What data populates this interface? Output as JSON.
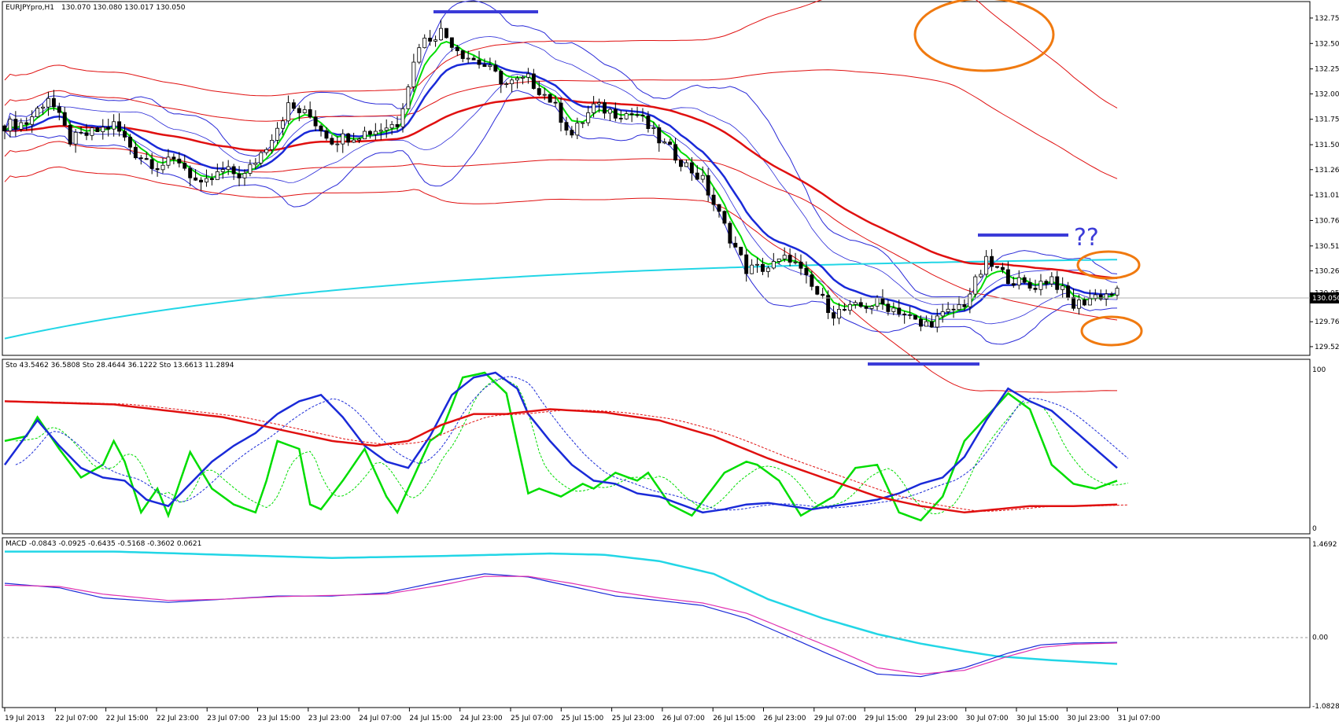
{
  "app": {
    "title": "EURJPYpro,H1",
    "ohlc": "130.070 130.080 130.017 130.050",
    "current_price": "130.050"
  },
  "colors": {
    "background": "#ffffff",
    "bull_candle": "#ffffff",
    "bear_candle": "#000000",
    "ema_fast": "#00dd00",
    "ema_mid": "#1a2ad8",
    "ema_slow": "#e01010",
    "ema_200": "#22d6e6",
    "bollinger_blue": "#2a2ad8",
    "bollinger_red": "#e01010",
    "annotation_orange": "#f07a10",
    "annotation_blue": "#3b3bd8",
    "macd_main": "#22d6e6",
    "macd_signal": "#e030b0",
    "stoch_fast": "#00dd00",
    "stoch_mid": "#1a2ad8",
    "stoch_slow": "#e01010"
  },
  "annotations": {
    "question": "??"
  },
  "chart_data": [
    {
      "type": "candlestick",
      "title": "EURJPYpro,H1",
      "subtitle": "130.070 130.080 130.017 130.050",
      "ylim": [
        129.45,
        132.85
      ],
      "y_ticks": [
        "132.750",
        "132.500",
        "132.250",
        "132.005",
        "131.755",
        "131.505",
        "131.260",
        "131.010",
        "130.760",
        "130.510",
        "130.265",
        "130.050",
        "129.765",
        "129.520"
      ],
      "x_ticks": [
        "19 Jul 2013",
        "22 Jul 07:00",
        "22 Jul 15:00",
        "22 Jul 23:00",
        "23 Jul 07:00",
        "23 Jul 15:00",
        "23 Jul 23:00",
        "24 Jul 07:00",
        "24 Jul 15:00",
        "24 Jul 23:00",
        "25 Jul 07:00",
        "25 Jul 15:00",
        "25 Jul 23:00",
        "26 Jul 07:00",
        "26 Jul 15:00",
        "26 Jul 23:00",
        "29 Jul 07:00",
        "29 Jul 15:00",
        "29 Jul 23:00",
        "30 Jul 07:00",
        "30 Jul 15:00",
        "30 Jul 23:00",
        "31 Jul 07:00"
      ],
      "close_key": [
        [
          0,
          131.7
        ],
        [
          4,
          131.72
        ],
        [
          8,
          131.98
        ],
        [
          12,
          131.55
        ],
        [
          16,
          131.62
        ],
        [
          20,
          131.7
        ],
        [
          24,
          131.42
        ],
        [
          28,
          131.3
        ],
        [
          32,
          131.35
        ],
        [
          36,
          131.08
        ],
        [
          40,
          131.25
        ],
        [
          44,
          131.2
        ],
        [
          48,
          131.5
        ],
        [
          52,
          131.88
        ],
        [
          56,
          131.78
        ],
        [
          60,
          131.55
        ],
        [
          64,
          131.6
        ],
        [
          68,
          131.65
        ],
        [
          72,
          131.72
        ],
        [
          76,
          132.5
        ],
        [
          80,
          132.62
        ],
        [
          84,
          132.4
        ],
        [
          88,
          132.28
        ],
        [
          92,
          132.1
        ],
        [
          96,
          132.15
        ],
        [
          100,
          131.95
        ],
        [
          104,
          131.6
        ],
        [
          108,
          131.88
        ],
        [
          112,
          131.82
        ],
        [
          116,
          131.8
        ],
        [
          120,
          131.55
        ],
        [
          124,
          131.35
        ],
        [
          128,
          131.15
        ],
        [
          132,
          130.7
        ],
        [
          136,
          130.28
        ],
        [
          140,
          130.3
        ],
        [
          144,
          130.4
        ],
        [
          148,
          130.1
        ],
        [
          152,
          129.85
        ],
        [
          156,
          129.9
        ],
        [
          160,
          129.95
        ],
        [
          164,
          129.88
        ],
        [
          168,
          129.72
        ],
        [
          172,
          129.82
        ],
        [
          176,
          129.95
        ],
        [
          180,
          130.35
        ],
        [
          184,
          130.2
        ],
        [
          188,
          130.1
        ],
        [
          192,
          130.2
        ],
        [
          196,
          129.92
        ],
        [
          200,
          130.02
        ],
        [
          204,
          130.05
        ]
      ],
      "series": [
        {
          "name": "Sto 43.5462 36.5808"
        },
        {
          "name": "Sto 28.4644 36.1222"
        },
        {
          "name": "Sto 13.6613 11.2894"
        }
      ]
    },
    {
      "type": "line",
      "title": "Sto 43.5462 36.5808   Sto 28.4644 36.1222   Sto 13.6613 11.2894",
      "ylim": [
        0,
        100
      ],
      "y_ticks": [
        "100",
        "0"
      ],
      "series": [
        {
          "key": [
            [
              0,
              55
            ],
            [
              4,
              58
            ],
            [
              6,
              70
            ],
            [
              10,
              50
            ],
            [
              14,
              32
            ],
            [
              18,
              40
            ],
            [
              20,
              55
            ],
            [
              22,
              42
            ],
            [
              25,
              10
            ],
            [
              28,
              25
            ],
            [
              30,
              8
            ],
            [
              34,
              48
            ],
            [
              38,
              25
            ],
            [
              42,
              15
            ],
            [
              46,
              10
            ],
            [
              48,
              30
            ],
            [
              50,
              55
            ],
            [
              54,
              50
            ],
            [
              56,
              15
            ],
            [
              58,
              12
            ],
            [
              62,
              30
            ],
            [
              66,
              50
            ],
            [
              70,
              20
            ],
            [
              72,
              10
            ],
            [
              78,
              55
            ],
            [
              80,
              60
            ],
            [
              84,
              95
            ],
            [
              88,
              98
            ],
            [
              92,
              85
            ],
            [
              96,
              22
            ],
            [
              98,
              25
            ],
            [
              102,
              20
            ],
            [
              106,
              28
            ],
            [
              108,
              25
            ],
            [
              112,
              35
            ],
            [
              116,
              30
            ],
            [
              118,
              35
            ],
            [
              122,
              15
            ],
            [
              126,
              8
            ],
            [
              132,
              35
            ],
            [
              136,
              42
            ],
            [
              138,
              40
            ],
            [
              142,
              30
            ],
            [
              146,
              8
            ],
            [
              152,
              20
            ],
            [
              156,
              38
            ],
            [
              160,
              40
            ],
            [
              164,
              10
            ],
            [
              168,
              5
            ],
            [
              172,
              20
            ],
            [
              176,
              55
            ],
            [
              180,
              70
            ],
            [
              184,
              85
            ],
            [
              188,
              75
            ],
            [
              192,
              40
            ],
            [
              196,
              28
            ],
            [
              200,
              25
            ],
            [
              204,
              30
            ]
          ]
        },
        {
          "key": [
            [
              0,
              40
            ],
            [
              6,
              68
            ],
            [
              10,
              52
            ],
            [
              14,
              38
            ],
            [
              18,
              32
            ],
            [
              22,
              30
            ],
            [
              26,
              18
            ],
            [
              30,
              14
            ],
            [
              34,
              28
            ],
            [
              38,
              42
            ],
            [
              42,
              52
            ],
            [
              46,
              60
            ],
            [
              50,
              72
            ],
            [
              54,
              80
            ],
            [
              58,
              84
            ],
            [
              62,
              70
            ],
            [
              66,
              52
            ],
            [
              70,
              42
            ],
            [
              74,
              38
            ],
            [
              78,
              58
            ],
            [
              82,
              84
            ],
            [
              86,
              95
            ],
            [
              90,
              98
            ],
            [
              94,
              88
            ],
            [
              96,
              72
            ],
            [
              100,
              55
            ],
            [
              104,
              40
            ],
            [
              108,
              30
            ],
            [
              112,
              28
            ],
            [
              116,
              22
            ],
            [
              120,
              20
            ],
            [
              124,
              15
            ],
            [
              128,
              10
            ],
            [
              132,
              12
            ],
            [
              136,
              15
            ],
            [
              140,
              16
            ],
            [
              144,
              14
            ],
            [
              148,
              12
            ],
            [
              152,
              14
            ],
            [
              156,
              16
            ],
            [
              160,
              18
            ],
            [
              164,
              22
            ],
            [
              168,
              28
            ],
            [
              172,
              32
            ],
            [
              176,
              45
            ],
            [
              180,
              68
            ],
            [
              184,
              88
            ],
            [
              188,
              80
            ],
            [
              192,
              74
            ],
            [
              196,
              62
            ],
            [
              200,
              50
            ],
            [
              204,
              38
            ]
          ]
        },
        {
          "key": [
            [
              0,
              80
            ],
            [
              20,
              78
            ],
            [
              40,
              70
            ],
            [
              60,
              55
            ],
            [
              68,
              52
            ],
            [
              74,
              55
            ],
            [
              80,
              65
            ],
            [
              86,
              72
            ],
            [
              92,
              72
            ],
            [
              100,
              75
            ],
            [
              110,
              73
            ],
            [
              120,
              68
            ],
            [
              130,
              58
            ],
            [
              140,
              44
            ],
            [
              150,
              32
            ],
            [
              160,
              20
            ],
            [
              168,
              14
            ],
            [
              176,
              10
            ],
            [
              182,
              12
            ],
            [
              188,
              14
            ],
            [
              196,
              14
            ],
            [
              204,
              15
            ]
          ]
        }
      ]
    },
    {
      "type": "line",
      "title": "MACD -0.0843 -0.0925 -0.6435 -0.5168 -0.3602 0.0621",
      "ylim": [
        -1.0828,
        1.4692
      ],
      "y_ticks": [
        "1.4692",
        "0.00",
        "-1.0828"
      ],
      "series": [
        {
          "key": [
            [
              0,
              1.35
            ],
            [
              20,
              1.35
            ],
            [
              40,
              1.3
            ],
            [
              60,
              1.25
            ],
            [
              80,
              1.28
            ],
            [
              100,
              1.32
            ],
            [
              110,
              1.3
            ],
            [
              120,
              1.2
            ],
            [
              130,
              1.0
            ],
            [
              140,
              0.6
            ],
            [
              150,
              0.3
            ],
            [
              160,
              0.05
            ],
            [
              168,
              -0.1
            ],
            [
              176,
              -0.22
            ],
            [
              182,
              -0.3
            ],
            [
              190,
              -0.35
            ],
            [
              196,
              -0.38
            ],
            [
              204,
              -0.42
            ]
          ]
        },
        {
          "key": [
            [
              0,
              0.85
            ],
            [
              10,
              0.78
            ],
            [
              18,
              0.62
            ],
            [
              30,
              0.55
            ],
            [
              40,
              0.6
            ],
            [
              50,
              0.65
            ],
            [
              60,
              0.65
            ],
            [
              70,
              0.7
            ],
            [
              80,
              0.88
            ],
            [
              88,
              1.0
            ],
            [
              96,
              0.95
            ],
            [
              104,
              0.8
            ],
            [
              112,
              0.65
            ],
            [
              120,
              0.58
            ],
            [
              128,
              0.5
            ],
            [
              136,
              0.3
            ],
            [
              144,
              0.0
            ],
            [
              152,
              -0.3
            ],
            [
              160,
              -0.58
            ],
            [
              168,
              -0.62
            ],
            [
              176,
              -0.48
            ],
            [
              184,
              -0.25
            ],
            [
              190,
              -0.12
            ],
            [
              196,
              -0.09
            ],
            [
              204,
              -0.08
            ]
          ]
        },
        {
          "key": [
            [
              0,
              0.82
            ],
            [
              10,
              0.8
            ],
            [
              18,
              0.68
            ],
            [
              30,
              0.58
            ],
            [
              40,
              0.6
            ],
            [
              50,
              0.64
            ],
            [
              60,
              0.66
            ],
            [
              70,
              0.68
            ],
            [
              80,
              0.82
            ],
            [
              88,
              0.96
            ],
            [
              96,
              0.96
            ],
            [
              104,
              0.85
            ],
            [
              112,
              0.72
            ],
            [
              120,
              0.62
            ],
            [
              128,
              0.54
            ],
            [
              136,
              0.38
            ],
            [
              144,
              0.1
            ],
            [
              152,
              -0.18
            ],
            [
              160,
              -0.48
            ],
            [
              168,
              -0.58
            ],
            [
              176,
              -0.52
            ],
            [
              184,
              -0.3
            ],
            [
              190,
              -0.16
            ],
            [
              196,
              -0.11
            ],
            [
              204,
              -0.09
            ]
          ]
        }
      ]
    }
  ]
}
